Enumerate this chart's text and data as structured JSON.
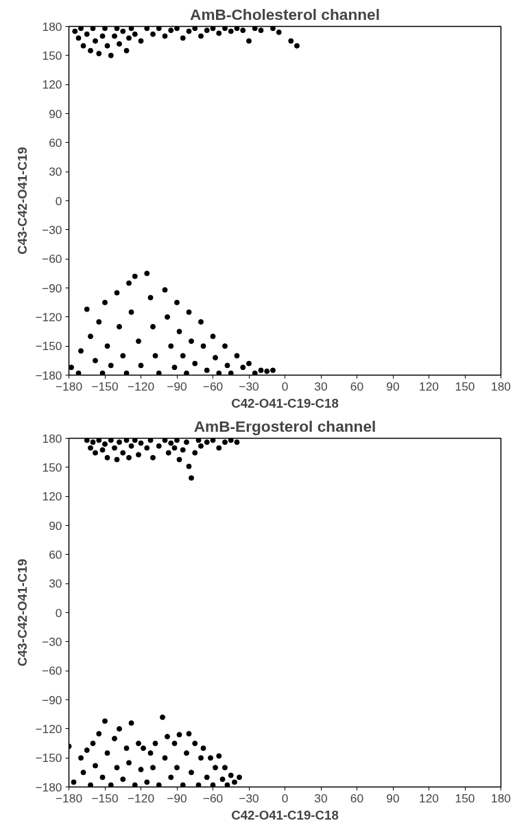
{
  "chart_data": [
    {
      "type": "scatter",
      "title": "AmB-Cholesterol channel",
      "xlabel": "C42-O41-C19-C18",
      "ylabel": "C43-C42-O41-C19",
      "marker": "circle",
      "grid": false,
      "xlim": [
        -180,
        180
      ],
      "ylim": [
        -180,
        180
      ],
      "xticks": [
        -180,
        -150,
        -120,
        -90,
        -60,
        -30,
        0,
        30,
        60,
        90,
        120,
        150,
        180
      ],
      "yticks": [
        -180,
        -150,
        -120,
        -90,
        -60,
        -30,
        0,
        30,
        60,
        90,
        120,
        150,
        180
      ],
      "series": [
        {
          "color": "#000000",
          "x": [
            -175,
            -172,
            -170,
            -168,
            -165,
            -162,
            -160,
            -158,
            -155,
            -152,
            -150,
            -148,
            -145,
            -142,
            -140,
            -138,
            -135,
            -132,
            -130,
            -128,
            -125,
            -120,
            -115,
            -110,
            -105,
            -100,
            -95,
            -90,
            -85,
            -80,
            -75,
            -70,
            -65,
            -60,
            -55,
            -50,
            -45,
            -40,
            -35,
            -30,
            -25,
            -20,
            -10,
            -5,
            5,
            10,
            -178,
            -172,
            -170,
            -165,
            -162,
            -158,
            -155,
            -152,
            -150,
            -148,
            -145,
            -140,
            -138,
            -135,
            -132,
            -130,
            -128,
            -125,
            -122,
            -120,
            -115,
            -112,
            -110,
            -108,
            -105,
            -100,
            -98,
            -95,
            -92,
            -90,
            -88,
            -85,
            -82,
            -80,
            -78,
            -75,
            -70,
            -68,
            -65,
            -60,
            -58,
            -55,
            -50,
            -48,
            -45,
            -40,
            -35,
            -30,
            -25,
            -20,
            -15,
            -10
          ],
          "values": [
            175,
            168,
            178,
            160,
            172,
            155,
            178,
            165,
            152,
            170,
            178,
            160,
            150,
            170,
            178,
            162,
            175,
            155,
            168,
            178,
            172,
            165,
            178,
            172,
            178,
            170,
            176,
            178,
            168,
            175,
            178,
            170,
            176,
            178,
            173,
            178,
            175,
            178,
            176,
            165,
            178,
            176,
            178,
            174,
            165,
            160,
            -172,
            -178,
            -155,
            -112,
            -140,
            -165,
            -125,
            -178,
            -105,
            -150,
            -170,
            -95,
            -130,
            -160,
            -178,
            -85,
            -115,
            -78,
            -145,
            -170,
            -75,
            -100,
            -130,
            -160,
            -178,
            -92,
            -120,
            -150,
            -172,
            -105,
            -135,
            -160,
            -178,
            -115,
            -145,
            -168,
            -125,
            -150,
            -175,
            -140,
            -162,
            -178,
            -150,
            -170,
            -178,
            -160,
            -172,
            -168,
            -178,
            -175,
            -176,
            -175
          ]
        }
      ]
    },
    {
      "type": "scatter",
      "title": "AmB-Ergosterol channel",
      "xlabel": "C42-O41-C19-C18",
      "ylabel": "C43-C42-O41-C19",
      "marker": "circle",
      "grid": false,
      "xlim": [
        -180,
        180
      ],
      "ylim": [
        -180,
        180
      ],
      "xticks": [
        -180,
        -150,
        -120,
        -90,
        -60,
        -30,
        0,
        30,
        60,
        90,
        120,
        150,
        180
      ],
      "yticks": [
        -180,
        -150,
        -120,
        -90,
        -60,
        -30,
        0,
        30,
        60,
        90,
        120,
        150,
        180
      ],
      "series": [
        {
          "color": "#000000",
          "x": [
            -165,
            -162,
            -160,
            -158,
            -155,
            -152,
            -150,
            -148,
            -145,
            -142,
            -140,
            -138,
            -135,
            -132,
            -130,
            -128,
            -125,
            -122,
            -120,
            -115,
            -112,
            -110,
            -105,
            -100,
            -97,
            -95,
            -92,
            -90,
            -88,
            -85,
            -82,
            -80,
            -78,
            -75,
            -72,
            -70,
            -65,
            -60,
            -55,
            -50,
            -45,
            -40,
            -180,
            -176,
            -170,
            -168,
            -165,
            -162,
            -160,
            -158,
            -155,
            -152,
            -150,
            -148,
            -145,
            -142,
            -140,
            -138,
            -135,
            -132,
            -130,
            -128,
            -125,
            -122,
            -120,
            -118,
            -115,
            -112,
            -110,
            -108,
            -105,
            -102,
            -100,
            -98,
            -95,
            -92,
            -90,
            -88,
            -85,
            -82,
            -80,
            -78,
            -75,
            -72,
            -70,
            -68,
            -65,
            -62,
            -60,
            -58,
            -55,
            -52,
            -50,
            -48,
            -45,
            -42,
            -38
          ],
          "values": [
            178,
            170,
            176,
            165,
            178,
            168,
            174,
            160,
            178,
            170,
            158,
            176,
            165,
            178,
            160,
            172,
            178,
            163,
            175,
            170,
            178,
            160,
            172,
            178,
            165,
            175,
            170,
            178,
            158,
            168,
            176,
            151,
            139,
            165,
            178,
            172,
            176,
            178,
            170,
            176,
            178,
            176,
            -138,
            -175,
            -150,
            -165,
            -142,
            -178,
            -135,
            -158,
            -125,
            -170,
            -112,
            -145,
            -178,
            -130,
            -160,
            -120,
            -172,
            -140,
            -155,
            -114,
            -178,
            -135,
            -162,
            -140,
            -175,
            -145,
            -160,
            -135,
            -178,
            -108,
            -150,
            -128,
            -170,
            -135,
            -160,
            -126,
            -178,
            -145,
            -125,
            -165,
            -135,
            -178,
            -150,
            -140,
            -170,
            -150,
            -178,
            -160,
            -148,
            -172,
            -160,
            -178,
            -168,
            -175,
            -170
          ]
        }
      ]
    }
  ]
}
